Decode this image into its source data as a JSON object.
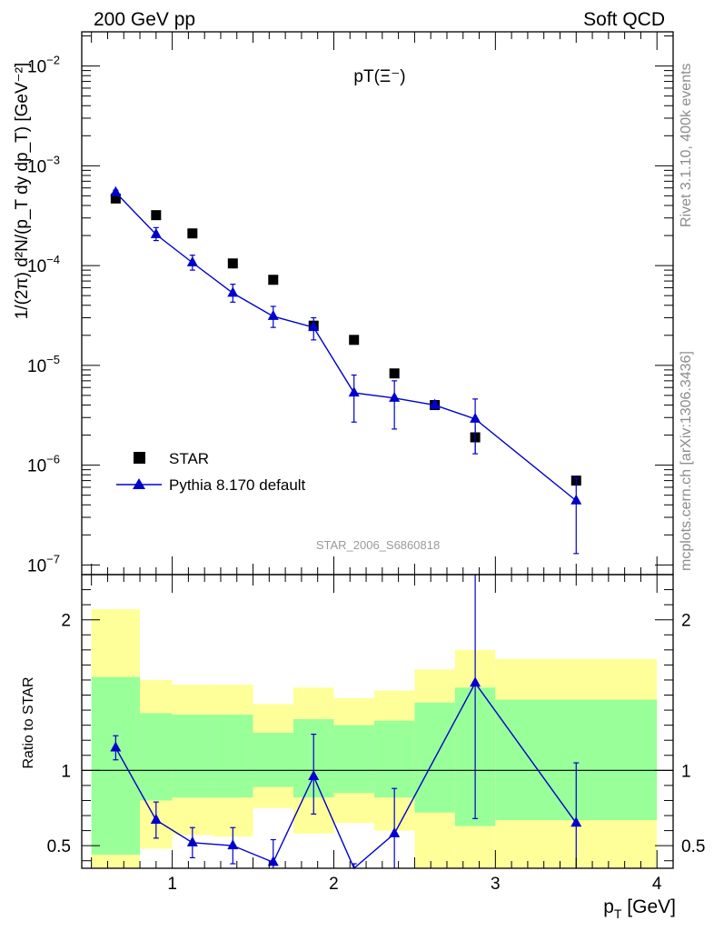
{
  "header": {
    "left": "200 GeV pp",
    "right": "Soft QCD"
  },
  "side_labels": {
    "rivet": "Rivet 3.1.10,  400k events",
    "mcplots": "mcplots.cern.ch [arXiv:1306.3436]"
  },
  "chart_data": [
    {
      "type": "scatter",
      "title": "pT(Ξ⁻)",
      "xlabel": "p_T [GeV]",
      "ylabel": "1/(2π) d²N/(p_T dy dp_T) [GeV⁻²]",
      "xlim": [
        0.44,
        4.1
      ],
      "ylim": [
        8e-08,
        0.022
      ],
      "yscale": "log",
      "watermark": "STAR_2006_S6860818",
      "legend_position": "bottom-left",
      "y_ticks": [
        {
          "v": 1e-07,
          "m": "10",
          "e": "−7"
        },
        {
          "v": 1e-06,
          "m": "10",
          "e": "−6"
        },
        {
          "v": 1e-05,
          "m": "10",
          "e": "−5"
        },
        {
          "v": 0.0001,
          "m": "10",
          "e": "−4"
        },
        {
          "v": 0.001,
          "m": "10",
          "e": "−3"
        },
        {
          "v": 0.01,
          "m": "10",
          "e": "−2"
        }
      ],
      "series": [
        {
          "name": "STAR",
          "marker": "square",
          "color": "#000000",
          "x": [
            0.65,
            0.9,
            1.125,
            1.375,
            1.625,
            1.875,
            2.125,
            2.375,
            2.625,
            2.875,
            3.5
          ],
          "y": [
            0.00047,
            0.00032,
            0.00021,
            0.000105,
            7.2e-05,
            2.5e-05,
            1.8e-05,
            8.3e-06,
            4e-06,
            1.9e-06,
            7e-07
          ],
          "yerr_low": [
            1.5e-05,
            1e-05,
            7e-06,
            3e-06,
            2e-06,
            1e-06,
            5e-07,
            4e-07,
            2e-07,
            6e-07,
            6e-08
          ],
          "yerr_high": [
            1.5e-05,
            1e-05,
            7e-06,
            3e-06,
            2e-06,
            1e-06,
            5e-07,
            4e-07,
            2e-07,
            6e-07,
            6e-08
          ]
        },
        {
          "name": "Pythia 8.170 default",
          "marker": "triangle",
          "color": "#0000cc",
          "x": [
            0.65,
            0.9,
            1.125,
            1.375,
            1.625,
            1.875,
            2.125,
            2.375,
            2.625,
            2.875,
            3.5
          ],
          "y": [
            0.00054,
            0.000205,
            0.000107,
            5.3e-05,
            3.1e-05,
            2.4e-05,
            5.3e-06,
            4.7e-06,
            4e-06,
            2.9e-06,
            4.4e-07
          ],
          "yerr_low": [
            3e-05,
            2.7e-05,
            1.7e-05,
            1e-05,
            7e-06,
            6e-06,
            2.6e-06,
            2.4e-06,
            3e-07,
            1.6e-06,
            3.1e-07
          ],
          "yerr_high": [
            3e-05,
            3.5e-05,
            2e-05,
            1.2e-05,
            8e-06,
            6e-06,
            2.7e-06,
            2.3e-06,
            3e-07,
            1.7e-06,
            3e-07
          ]
        }
      ]
    },
    {
      "type": "scatter",
      "ylabel": "Ratio to STAR",
      "xlabel": "p_T [GeV]",
      "xlim": [
        0.44,
        4.1
      ],
      "ylim": [
        0.35,
        2.3
      ],
      "reference_line": 1.0,
      "x_ticks": [
        "1",
        "2",
        "3",
        "4"
      ],
      "y_ticks": [
        "0.5",
        "1",
        "2"
      ],
      "bands": [
        {
          "x": [
            0.5,
            0.8
          ],
          "green": [
            0.44,
            1.62
          ],
          "yellow": [
            0.35,
            2.07
          ]
        },
        {
          "x": [
            0.8,
            1.0
          ],
          "green": [
            0.8,
            1.38
          ],
          "yellow": [
            0.48,
            1.6
          ]
        },
        {
          "x": [
            1.0,
            1.25
          ],
          "green": [
            0.82,
            1.37
          ],
          "yellow": [
            0.57,
            1.57
          ]
        },
        {
          "x": [
            1.25,
            1.5
          ],
          "green": [
            0.82,
            1.37
          ],
          "yellow": [
            0.56,
            1.57
          ]
        },
        {
          "x": [
            1.5,
            1.75
          ],
          "green": [
            0.89,
            1.25
          ],
          "yellow": [
            0.75,
            1.44
          ]
        },
        {
          "x": [
            1.75,
            2.0
          ],
          "green": [
            0.82,
            1.34
          ],
          "yellow": [
            0.58,
            1.55
          ]
        },
        {
          "x": [
            2.0,
            2.25
          ],
          "green": [
            0.85,
            1.3
          ],
          "yellow": [
            0.65,
            1.48
          ]
        },
        {
          "x": [
            2.25,
            2.5
          ],
          "green": [
            0.82,
            1.33
          ],
          "yellow": [
            0.6,
            1.53
          ]
        },
        {
          "x": [
            2.5,
            2.75
          ],
          "green": [
            0.72,
            1.45
          ],
          "yellow": [
            0.35,
            1.67
          ]
        },
        {
          "x": [
            2.75,
            3.0
          ],
          "green": [
            0.63,
            1.55
          ],
          "yellow": [
            0.35,
            1.8
          ]
        },
        {
          "x": [
            3.0,
            4.0
          ],
          "green": [
            0.67,
            1.47
          ],
          "yellow": [
            0.35,
            1.74
          ]
        }
      ],
      "series": [
        {
          "name": "Pythia 8.170 default",
          "color": "#0000cc",
          "x": [
            0.65,
            0.9,
            1.125,
            1.375,
            1.625,
            1.875,
            2.125,
            2.375,
            2.875,
            3.5
          ],
          "y": [
            1.15,
            0.67,
            0.52,
            0.5,
            0.39,
            0.96,
            0.28,
            0.58,
            1.58,
            0.65
          ],
          "yerr_low": [
            0.08,
            0.12,
            0.1,
            0.12,
            0.1,
            0.25,
            0.1,
            0.3,
            0.9,
            0.45
          ],
          "yerr_high": [
            0.08,
            0.12,
            0.1,
            0.12,
            0.15,
            0.28,
            0.1,
            0.3,
            0.85,
            0.4
          ]
        }
      ]
    }
  ]
}
